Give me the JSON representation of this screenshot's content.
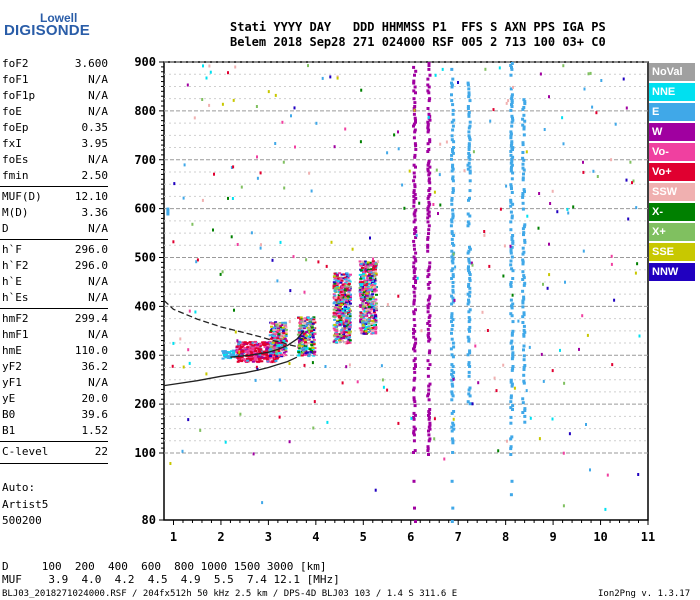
{
  "logo": {
    "line1": "Lowell",
    "line2": "DIGISONDE"
  },
  "header": {
    "line1": "Stati YYYY DAY   DDD HHMMSS P1  FFS S AXN PPS IGA PS",
    "line2": "Belem 2018 Sep28 271 024000 RSF 005 2 713 100 03+ C0"
  },
  "params": [
    {
      "name": "foF2",
      "value": "3.600"
    },
    {
      "name": "foF1",
      "value": "N/A"
    },
    {
      "name": "foF1p",
      "value": "N/A"
    },
    {
      "name": "foE",
      "value": "N/A"
    },
    {
      "name": "foEp",
      "value": "0.35"
    },
    {
      "name": "fxI",
      "value": "3.95"
    },
    {
      "name": "foEs",
      "value": "N/A"
    },
    {
      "name": "fmin",
      "value": "2.50"
    },
    {
      "name": "MUF(D)",
      "value": "12.10"
    },
    {
      "name": "M(D)",
      "value": "3.36"
    },
    {
      "name": "D",
      "value": "N/A"
    },
    {
      "name": "h`F",
      "value": "296.0"
    },
    {
      "name": "h`F2",
      "value": "296.0"
    },
    {
      "name": "h`E",
      "value": "N/A"
    },
    {
      "name": "h`Es",
      "value": "N/A"
    },
    {
      "name": "hmF2",
      "value": "299.4"
    },
    {
      "name": "hmF1",
      "value": "N/A"
    },
    {
      "name": "hmE",
      "value": "110.0"
    },
    {
      "name": "yF2",
      "value": "36.2"
    },
    {
      "name": "yF1",
      "value": "N/A"
    },
    {
      "name": "yE",
      "value": "20.0"
    },
    {
      "name": "B0",
      "value": "39.6"
    },
    {
      "name": "B1",
      "value": "1.52"
    },
    {
      "name": "C-level",
      "value": "22"
    }
  ],
  "auto": {
    "line1": "Auto:",
    "line2": "Artist5",
    "line3": "500200"
  },
  "legend": [
    {
      "label": "NoVal",
      "color": "#a0a0a0"
    },
    {
      "label": "NNE",
      "color": "#00e0f0"
    },
    {
      "label": "E",
      "color": "#40a8e8"
    },
    {
      "label": "W",
      "color": "#a000a0"
    },
    {
      "label": "Vo-",
      "color": "#f040a0"
    },
    {
      "label": "Vo+",
      "color": "#e00030"
    },
    {
      "label": "SSW",
      "color": "#f0b0b0"
    },
    {
      "label": "X-",
      "color": "#008000"
    },
    {
      "label": "X+",
      "color": "#80c060"
    },
    {
      "label": "SSE",
      "color": "#c8c800"
    },
    {
      "label": "NNW",
      "color": "#2000c0"
    }
  ],
  "bottom": {
    "d_row": "D     100  200  400  600  800 1000 1500 3000 [km]",
    "muf_row": "MUF    3.9  4.0  4.2  4.5  4.9  5.5  7.4 12.1 [MHz]"
  },
  "footer": {
    "left": "BLJ03_2018271024000.RSF / 204fx512h 50 kHz 2.5 km / DPS-4D BLJ03 103 / 1.4 S 311.6 E",
    "right": "Ion2Png v. 1.3.17"
  },
  "chart_data": {
    "type": "scatter",
    "x_ticks": [
      "1",
      "2",
      "3",
      "4",
      "5",
      "6",
      "7",
      "8",
      "9",
      "10",
      "11"
    ],
    "y_ticks": [
      "80",
      "100",
      "200",
      "300",
      "400",
      "500",
      "600",
      "700",
      "800",
      "900"
    ],
    "xlim": [
      0.8,
      11
    ],
    "ylim": [
      80,
      900
    ],
    "y_scale": "piecewise-linear (80-100 compressed)",
    "grid": "dashed horizontal every 25 km",
    "trace_solid": {
      "x": [
        0.8,
        1.5,
        2.0,
        2.5,
        2.8,
        3.0,
        3.2,
        3.4,
        3.6
      ],
      "y": [
        238,
        248,
        257,
        264,
        270,
        275,
        281,
        287,
        296
      ]
    },
    "trace_solid2": {
      "x": [
        2.2,
        2.6,
        3.0,
        3.2,
        3.4,
        3.6,
        3.75
      ],
      "y": [
        296,
        300,
        306,
        312,
        320,
        333,
        350
      ]
    },
    "trace_dashed": {
      "x": [
        0.8,
        1.0,
        1.5,
        2.0,
        2.5,
        2.9,
        3.1,
        3.3,
        3.4,
        3.6
      ],
      "y": [
        412,
        394,
        374,
        358,
        346,
        336,
        330,
        326,
        322,
        318
      ]
    },
    "clusters": [
      {
        "x0": 2.0,
        "x1": 2.3,
        "y0": 295,
        "y1": 312,
        "mix": "E"
      },
      {
        "x0": 2.3,
        "x1": 3.2,
        "y0": 288,
        "y1": 330,
        "mix": "Vo"
      },
      {
        "x0": 3.0,
        "x1": 3.35,
        "y0": 300,
        "y1": 370,
        "mix": "mixed"
      },
      {
        "x0": 3.6,
        "x1": 3.95,
        "y0": 300,
        "y1": 380,
        "mix": "mixed"
      },
      {
        "x0": 4.35,
        "x1": 4.7,
        "y0": 325,
        "y1": 470,
        "mix": "mixed"
      },
      {
        "x0": 4.9,
        "x1": 5.25,
        "y0": 345,
        "y1": 495,
        "mix": "mixed"
      }
    ],
    "vertical_traces": [
      {
        "x": 6.05,
        "y0": 80,
        "y1": 900,
        "color": "W"
      },
      {
        "x": 6.35,
        "y0": 100,
        "y1": 900,
        "color": "W"
      },
      {
        "x": 6.85,
        "y0": 80,
        "y1": 900,
        "color": "E"
      },
      {
        "x": 7.2,
        "y0": 200,
        "y1": 860,
        "color": "E"
      },
      {
        "x": 8.1,
        "y0": 80,
        "y1": 900,
        "color": "E"
      },
      {
        "x": 8.35,
        "y0": 150,
        "y1": 840,
        "color": "E"
      }
    ]
  }
}
